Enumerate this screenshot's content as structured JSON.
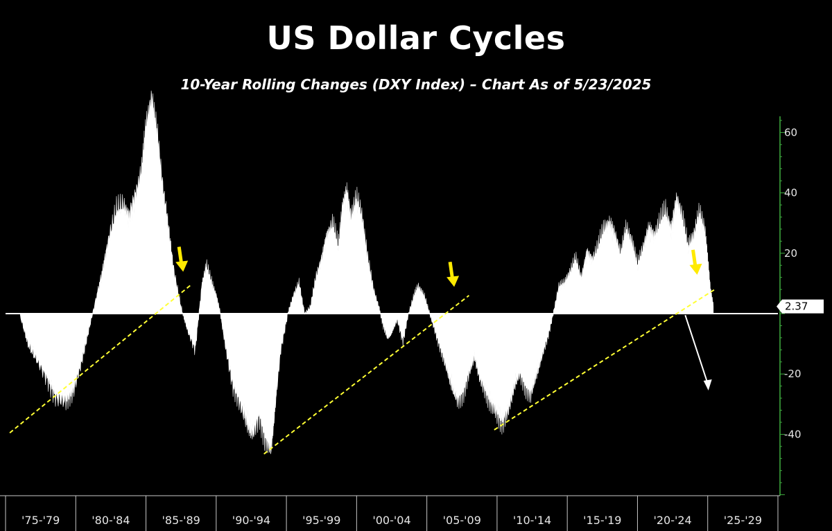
{
  "chart_data": {
    "type": "area",
    "title": "US Dollar Cycles",
    "subtitle": "10-Year Rolling Changes (DXY Index) – Chart As of 5/23/2025",
    "ylim": [
      -60,
      72
    ],
    "y_ticks": [
      60,
      40,
      20,
      -20,
      -40
    ],
    "x_ticks": [
      "'75-'79",
      "'80-'84",
      "'85-'89",
      "'90-'94",
      "'95-'99",
      "'00-'04",
      "'05-'09",
      "'10-'14",
      "'15-'19",
      "'20-'24",
      "'25-'29"
    ],
    "last_value_label": "2.37",
    "last_value": 2.37,
    "grid": false,
    "legend": "none",
    "colors": {
      "background": "#000000",
      "area": "#ffffff",
      "axis": "#3fae3f",
      "trendline": "#ffff33",
      "arrow": "#ffea00"
    },
    "x_range": [
      1975,
      2030
    ],
    "series": [
      {
        "x": [
          1976.0,
          1976.6,
          1977.3,
          1978.0,
          1978.6,
          1979.3,
          1979.8,
          1980.3,
          1980.8,
          1981.3,
          1981.9,
          1982.4,
          1982.9,
          1983.4,
          1983.8,
          1984.3,
          1984.7,
          1985.0,
          1985.4,
          1985.8,
          1986.2,
          1986.6,
          1987.0,
          1987.5,
          1988.0,
          1988.5,
          1989.0,
          1989.3,
          1989.7,
          1990.0,
          1990.3,
          1990.7,
          1991.2,
          1991.7,
          1992.2,
          1992.6,
          1993.1,
          1993.5,
          1993.9,
          1994.2,
          1994.6,
          1995.1,
          1995.5,
          1995.9,
          1996.3,
          1996.7,
          1997.1,
          1997.5,
          1997.9,
          1998.3,
          1998.7,
          1999.0,
          1999.3,
          1999.6,
          2000.0,
          2000.4,
          2000.8,
          2001.2,
          2001.6,
          2001.9,
          2002.2,
          2002.5,
          2002.9,
          2003.3,
          2003.7,
          2004.1,
          2004.4,
          2004.8,
          2005.2,
          2005.6,
          2006.0,
          2006.4,
          2006.8,
          2007.2,
          2007.6,
          2008.0,
          2008.4,
          2008.8,
          2009.2,
          2009.6,
          2010.0,
          2010.4,
          2010.8,
          2011.2,
          2011.6,
          2012.0,
          2012.4,
          2012.8,
          2013.2,
          2013.6,
          2014.0,
          2014.4,
          2014.8,
          2015.2,
          2015.6,
          2016.0,
          2016.4,
          2016.8,
          2017.2,
          2017.6,
          2018.0,
          2018.4,
          2018.8,
          2019.2,
          2019.6,
          2020.0,
          2020.4,
          2020.8,
          2021.2,
          2021.6,
          2022.0,
          2022.4,
          2022.8,
          2023.2,
          2023.6,
          2024.0,
          2024.4,
          2024.8,
          2025.0,
          2025.2,
          2025.4
        ],
        "y": [
          0,
          -10,
          -16,
          -22,
          -28,
          -29,
          -26,
          -18,
          -8,
          2,
          14,
          26,
          34,
          36,
          32,
          40,
          48,
          62,
          72,
          60,
          42,
          28,
          14,
          2,
          -6,
          -12,
          10,
          16,
          10,
          6,
          0,
          -12,
          -24,
          -30,
          -36,
          -40,
          -34,
          -42,
          -45,
          -30,
          -12,
          0,
          6,
          10,
          0,
          2,
          12,
          18,
          26,
          30,
          22,
          36,
          40,
          32,
          38,
          32,
          18,
          8,
          2,
          -4,
          -8,
          -6,
          -2,
          -9,
          0,
          6,
          9,
          6,
          0,
          -6,
          -12,
          -18,
          -24,
          -29,
          -26,
          -20,
          -14,
          -22,
          -26,
          -30,
          -33,
          -36,
          -32,
          -24,
          -20,
          -24,
          -27,
          -20,
          -14,
          -8,
          0,
          9,
          10,
          14,
          18,
          12,
          20,
          18,
          22,
          28,
          30,
          26,
          20,
          28,
          24,
          16,
          22,
          28,
          26,
          30,
          34,
          28,
          38,
          32,
          22,
          26,
          33,
          28,
          18,
          8,
          2.37
        ]
      }
    ],
    "trendlines": [
      {
        "x": [
          1975.3,
          1988.2
        ],
        "y": [
          -39.5,
          9.5
        ]
      },
      {
        "x": [
          1993.4,
          2008.0
        ],
        "y": [
          -46.5,
          6.0
        ]
      },
      {
        "x": [
          2009.8,
          2025.5
        ],
        "y": [
          -38.5,
          8.0
        ]
      }
    ],
    "down_arrows": [
      {
        "x": 1987.5,
        "y": 18
      },
      {
        "x": 2006.8,
        "y": 13
      },
      {
        "x": 2024.1,
        "y": 17
      }
    ],
    "projection_arrow": {
      "x": [
        2023.4,
        2025.0
      ],
      "y": [
        -0.5,
        -25.0
      ]
    }
  }
}
